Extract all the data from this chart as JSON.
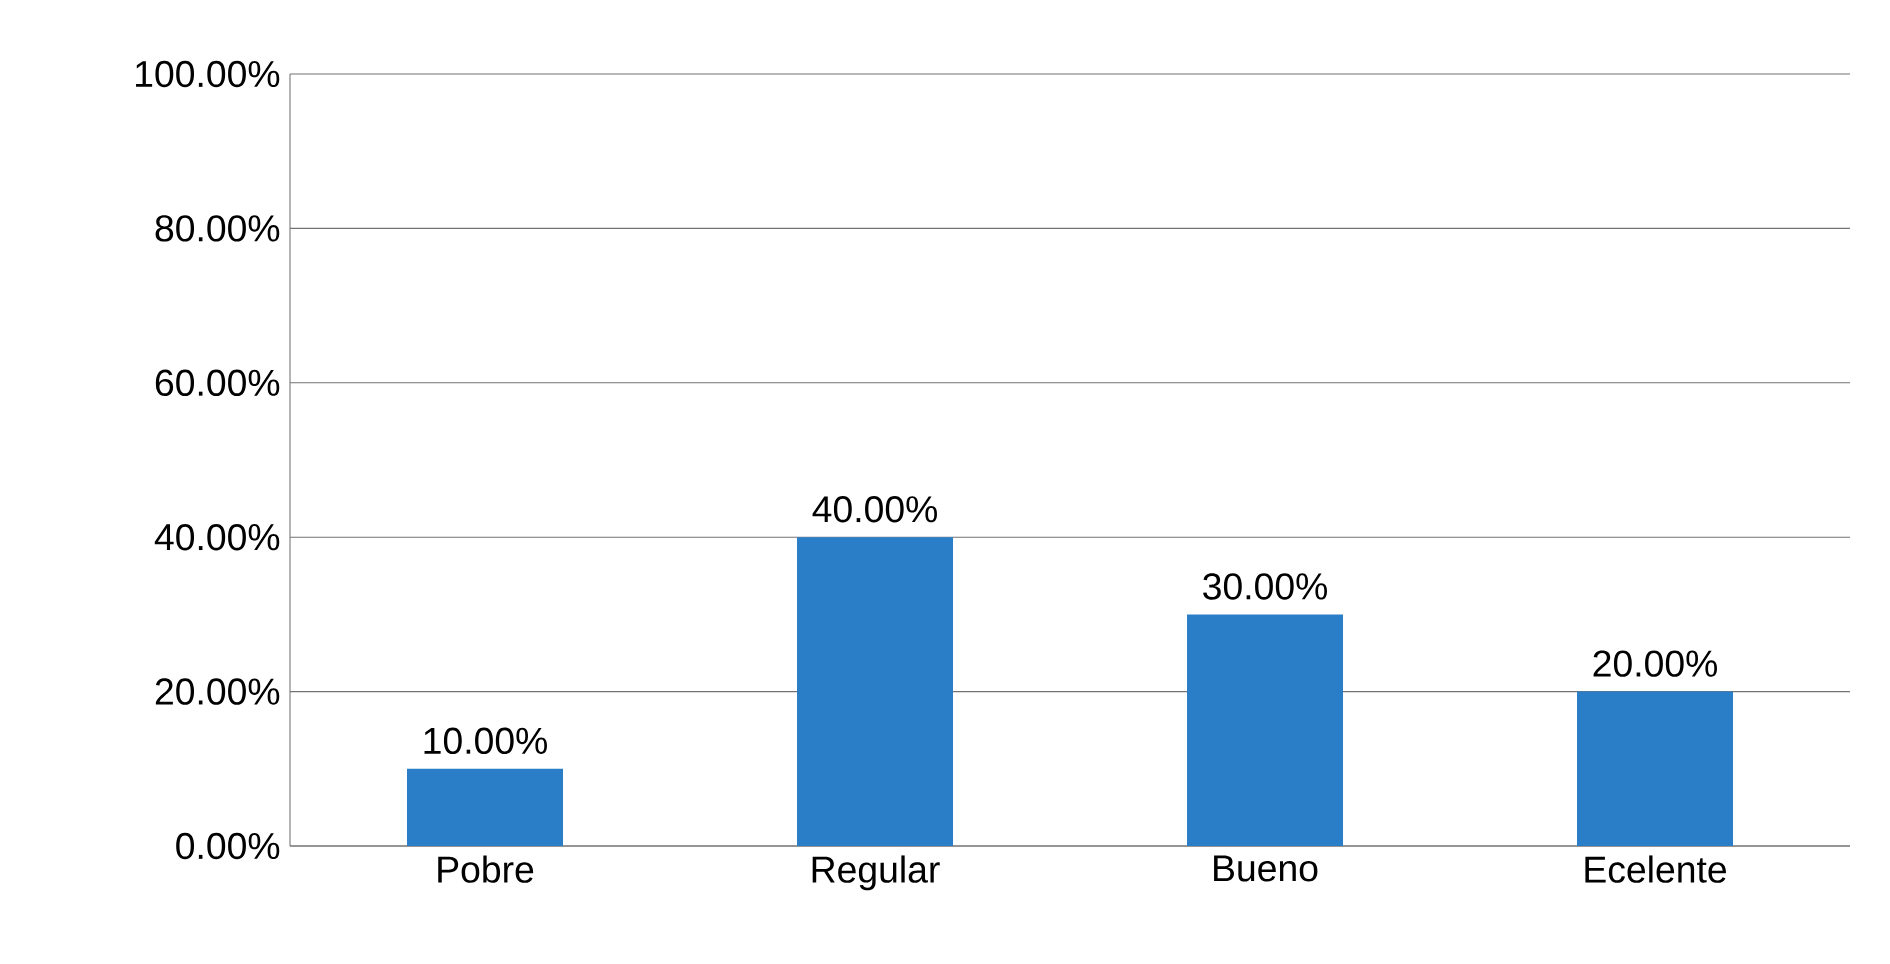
{
  "chart_data": {
    "type": "bar",
    "categories": [
      "Pobre",
      "Regular",
      "Bueno",
      "Ecelente"
    ],
    "values": [
      10,
      40,
      30,
      20
    ],
    "value_labels": [
      "10.00%",
      "40.00%",
      "30.00%",
      "20.00%"
    ],
    "color": "#2a7ec8",
    "ylim": [
      0,
      100
    ],
    "yticks": [
      {
        "value": 0,
        "label": "0.00%"
      },
      {
        "value": 20,
        "label": "20.00%"
      },
      {
        "value": 40,
        "label": "40.00%"
      },
      {
        "value": 60,
        "label": "60.00%"
      },
      {
        "value": 80,
        "label": "80.00%"
      },
      {
        "value": 100,
        "label": "100.00%"
      }
    ],
    "grid": "y"
  }
}
